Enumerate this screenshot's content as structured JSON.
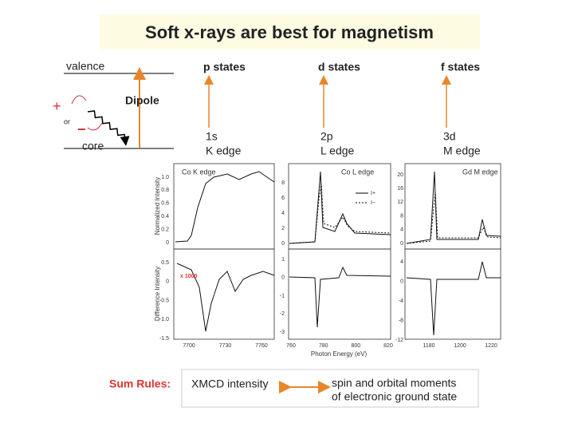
{
  "title": "Soft x-rays are best for magnetism",
  "diagram": {
    "valence": "valence",
    "core": "core",
    "dipole": "Dipole",
    "plus": "+",
    "or": "or",
    "minus": "−"
  },
  "columns": [
    {
      "state": "p states",
      "level": "1s",
      "edge": "K edge"
    },
    {
      "state": "d states",
      "level": "2p",
      "edge": "L edge"
    },
    {
      "state": "f states",
      "level": "3d",
      "edge": "M edge"
    }
  ],
  "y_axis_labels": {
    "top": "Normalized Intensity",
    "bottom": "Difference Intensity"
  },
  "x_axis_label": "Photon Energy (eV)",
  "scale_note": "x 1000",
  "legend": [
    "I+",
    "I−"
  ],
  "panels": [
    {
      "label": "Co K edge",
      "top_ticks": [
        "1.0",
        "0.8",
        "0.6",
        "0.4",
        "0.2",
        "0"
      ],
      "bottom_ticks": [
        "0.5",
        "0",
        "-0.5",
        "-1.0",
        "-1.5"
      ],
      "x_ticks": [
        "7700",
        "7730",
        "7760"
      ]
    },
    {
      "label": "Co L edge",
      "top_ticks": [
        "8",
        "6",
        "4",
        "2",
        "0"
      ],
      "bottom_ticks": [
        "1",
        "0",
        "-1",
        "-2",
        "-3"
      ],
      "x_ticks": [
        "760",
        "780",
        "800",
        "820"
      ]
    },
    {
      "label": "Gd M edge",
      "top_ticks": [
        "20",
        "16",
        "12",
        "8",
        "4",
        "0"
      ],
      "bottom_ticks": [
        "4",
        "0",
        "-4",
        "-8",
        "-12"
      ],
      "x_ticks": [
        "1180",
        "1200",
        "1220"
      ]
    }
  ],
  "sum_rules": {
    "label": "Sum Rules:",
    "left": "XMCD intensity",
    "right": [
      "spin and orbital moments",
      "of electronic ground state"
    ]
  }
}
